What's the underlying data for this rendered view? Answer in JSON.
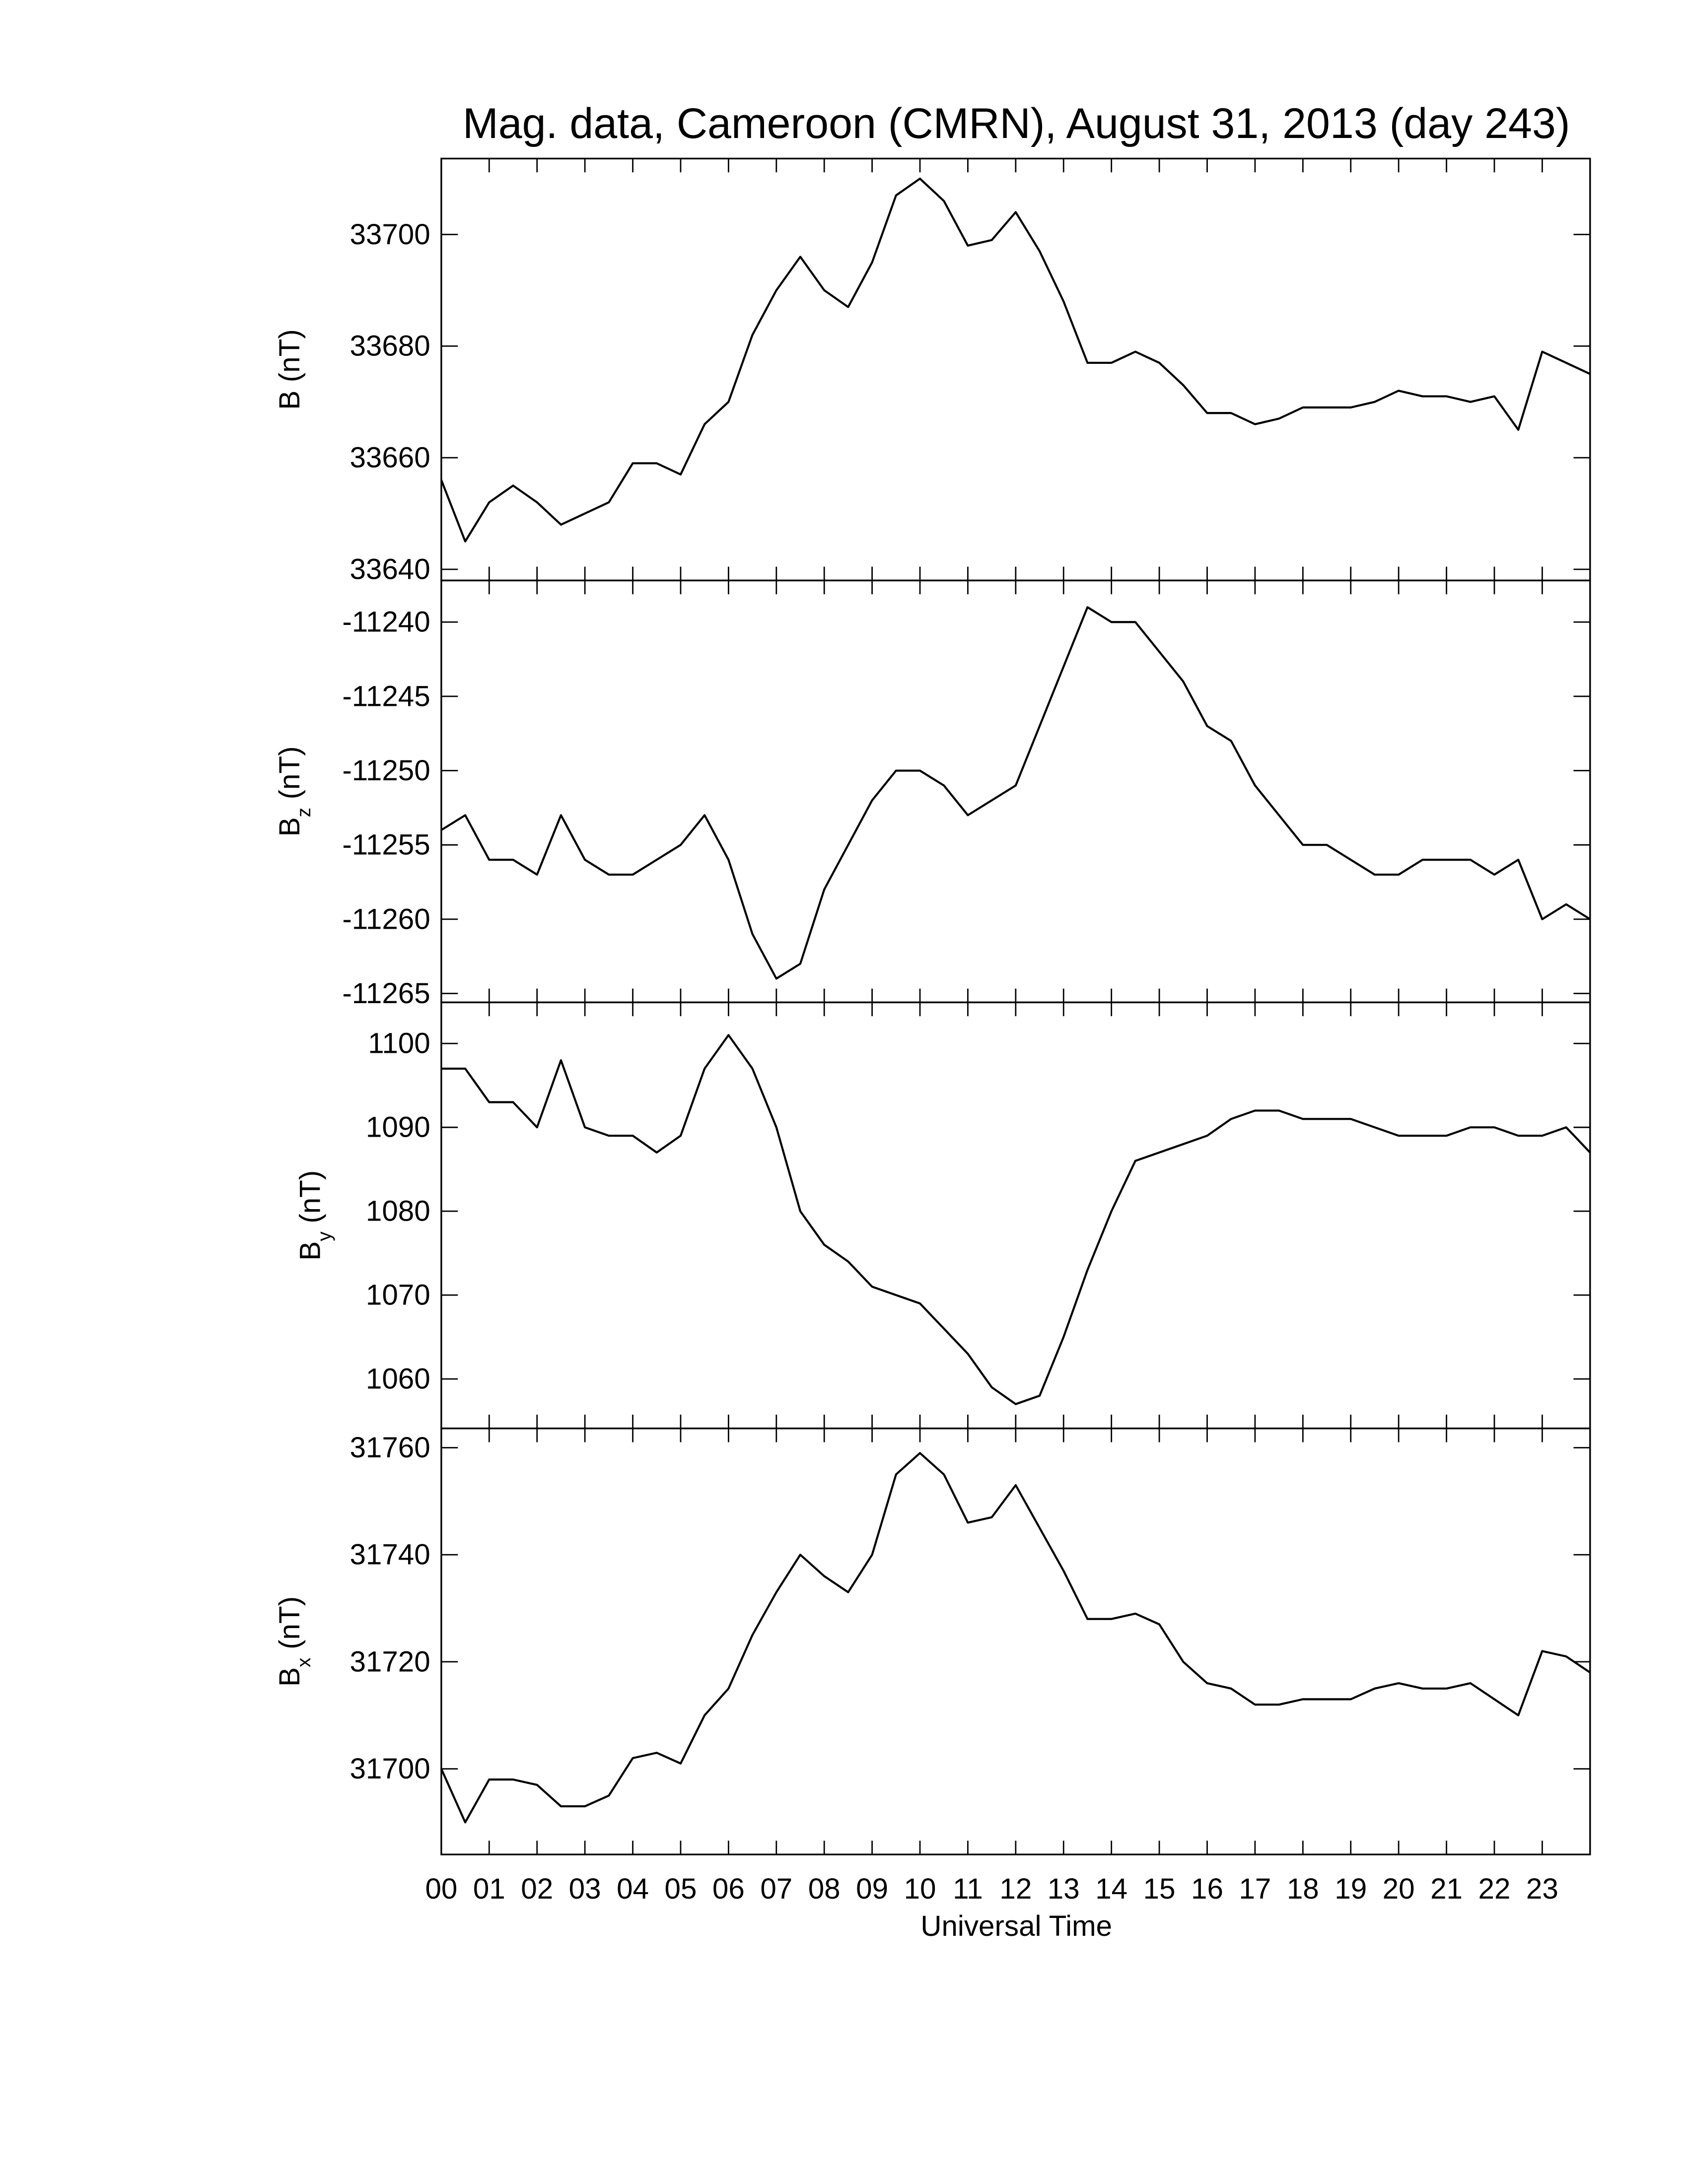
{
  "chart_data": [
    {
      "type": "line",
      "title": "Mag. data, Cameroon (CMRN), August 31, 2013 (day 243)",
      "ylabel": {
        "base": "B",
        "unit": "(nT)"
      },
      "x": [
        0,
        0.5,
        1,
        1.5,
        2,
        2.5,
        3,
        3.5,
        4,
        4.5,
        5,
        5.5,
        6,
        6.5,
        7,
        7.5,
        8,
        8.5,
        9,
        9.5,
        10,
        10.5,
        11,
        11.5,
        12,
        12.5,
        13,
        13.5,
        14,
        14.5,
        15,
        15.5,
        16,
        16.5,
        17,
        17.5,
        18,
        18.5,
        19,
        19.5,
        20,
        20.5,
        21,
        21.5,
        22,
        22.5,
        23,
        23.5,
        24
      ],
      "series": [
        {
          "color": "#000000",
          "values": [
            33656,
            33645,
            33652,
            33655,
            33652,
            33648,
            33650,
            33652,
            33659,
            33659,
            33657,
            33666,
            33670,
            33682,
            33690,
            33696,
            33690,
            33687,
            33695,
            33707,
            33710,
            33706,
            33698,
            33699,
            33704,
            33697,
            33688,
            33677,
            33677,
            33679,
            33677,
            33673,
            33668,
            33668,
            33666,
            33667,
            33669,
            33669,
            33669,
            33670,
            33672,
            33671,
            33671,
            33670,
            33671,
            33665,
            33679,
            33677,
            33675
          ]
        }
      ],
      "ylim": [
        33638,
        33713.6
      ],
      "yticks": [
        33640,
        33660,
        33680,
        33700
      ]
    },
    {
      "type": "line",
      "ylabel": {
        "base": "B",
        "sub": "z",
        "unit": "(nT)"
      },
      "x": [
        0,
        0.5,
        1,
        1.5,
        2,
        2.5,
        3,
        3.5,
        4,
        4.5,
        5,
        5.5,
        6,
        6.5,
        7,
        7.5,
        8,
        8.5,
        9,
        9.5,
        10,
        10.5,
        11,
        11.5,
        12,
        12.5,
        13,
        13.5,
        14,
        14.5,
        15,
        15.5,
        16,
        16.5,
        17,
        17.5,
        18,
        18.5,
        19,
        19.5,
        20,
        20.5,
        21,
        21.5,
        22,
        22.5,
        23,
        23.5,
        24
      ],
      "series": [
        {
          "color": "#000000",
          "values": [
            -11254,
            -11253,
            -11256,
            -11256,
            -11257,
            -11253,
            -11256,
            -11257,
            -11257,
            -11256,
            -11255,
            -11253,
            -11256,
            -11261,
            -11264,
            -11263,
            -11258,
            -11255,
            -11252,
            -11250,
            -11250,
            -11251,
            -11253,
            -11252,
            -11251,
            -11247,
            -11243,
            -11239,
            -11240,
            -11240,
            -11242,
            -11244,
            -11247,
            -11248,
            -11251,
            -11253,
            -11255,
            -11255,
            -11256,
            -11257,
            -11257,
            -11256,
            -11256,
            -11256,
            -11257,
            -11256,
            -11260,
            -11259,
            -11260
          ]
        }
      ],
      "ylim": [
        -11265.6,
        -11237.2
      ],
      "yticks": [
        -11265,
        -11260,
        -11255,
        -11250,
        -11245,
        -11240
      ]
    },
    {
      "type": "line",
      "ylabel": {
        "base": "B",
        "sub": "y",
        "unit": "(nT)"
      },
      "x": [
        0,
        0.5,
        1,
        1.5,
        2,
        2.5,
        3,
        3.5,
        4,
        4.5,
        5,
        5.5,
        6,
        6.5,
        7,
        7.5,
        8,
        8.5,
        9,
        9.5,
        10,
        10.5,
        11,
        11.5,
        12,
        12.5,
        13,
        13.5,
        14,
        14.5,
        15,
        15.5,
        16,
        16.5,
        17,
        17.5,
        18,
        18.5,
        19,
        19.5,
        20,
        20.5,
        21,
        21.5,
        22,
        22.5,
        23,
        23.5,
        24
      ],
      "series": [
        {
          "color": "#000000",
          "values": [
            1097,
            1097,
            1093,
            1093,
            1090,
            1098,
            1090,
            1089,
            1089,
            1087,
            1089,
            1097,
            1101,
            1097,
            1090,
            1080,
            1076,
            1074,
            1071,
            1070,
            1069,
            1066,
            1063,
            1059,
            1057,
            1058,
            1065,
            1073,
            1080,
            1086,
            1087,
            1088,
            1089,
            1091,
            1092,
            1092,
            1091,
            1091,
            1091,
            1090,
            1089,
            1089,
            1089,
            1090,
            1090,
            1089,
            1089,
            1090,
            1087
          ]
        }
      ],
      "ylim": [
        1054.1,
        1104.9
      ],
      "yticks": [
        1060,
        1070,
        1080,
        1090,
        1100
      ]
    },
    {
      "type": "line",
      "ylabel": {
        "base": "B",
        "sub": "x",
        "unit": "(nT)"
      },
      "xlabel": "Universal Time",
      "x": [
        0,
        0.5,
        1,
        1.5,
        2,
        2.5,
        3,
        3.5,
        4,
        4.5,
        5,
        5.5,
        6,
        6.5,
        7,
        7.5,
        8,
        8.5,
        9,
        9.5,
        10,
        10.5,
        11,
        11.5,
        12,
        12.5,
        13,
        13.5,
        14,
        14.5,
        15,
        15.5,
        16,
        16.5,
        17,
        17.5,
        18,
        18.5,
        19,
        19.5,
        20,
        20.5,
        21,
        21.5,
        22,
        22.5,
        23,
        23.5,
        24
      ],
      "series": [
        {
          "color": "#000000",
          "values": [
            31700,
            31690,
            31698,
            31698,
            31697,
            31693,
            31693,
            31695,
            31702,
            31703,
            31701,
            31710,
            31715,
            31725,
            31733,
            31740,
            31736,
            31733,
            31740,
            31755,
            31759,
            31755,
            31746,
            31747,
            31753,
            31745,
            31737,
            31728,
            31728,
            31729,
            31727,
            31720,
            31716,
            31715,
            31712,
            31712,
            31713,
            31713,
            31713,
            31715,
            31716,
            31715,
            31715,
            31716,
            31713,
            31710,
            31722,
            31721,
            31718
          ]
        }
      ],
      "ylim": [
        31684,
        31763.6
      ],
      "yticks": [
        31700,
        31720,
        31740,
        31760
      ],
      "xlim": [
        0,
        24
      ],
      "xticks": [
        {
          "value": 0,
          "label": "00"
        },
        {
          "value": 1,
          "label": "01"
        },
        {
          "value": 2,
          "label": "02"
        },
        {
          "value": 3,
          "label": "03"
        },
        {
          "value": 4,
          "label": "04"
        },
        {
          "value": 5,
          "label": "05"
        },
        {
          "value": 6,
          "label": "06"
        },
        {
          "value": 7,
          "label": "07"
        },
        {
          "value": 8,
          "label": "08"
        },
        {
          "value": 9,
          "label": "09"
        },
        {
          "value": 10,
          "label": "10"
        },
        {
          "value": 11,
          "label": "11"
        },
        {
          "value": 12,
          "label": "12"
        },
        {
          "value": 13,
          "label": "13"
        },
        {
          "value": 14,
          "label": "14"
        },
        {
          "value": 15,
          "label": "15"
        },
        {
          "value": 16,
          "label": "16"
        },
        {
          "value": 17,
          "label": "17"
        },
        {
          "value": 18,
          "label": "18"
        },
        {
          "value": 19,
          "label": "19"
        },
        {
          "value": 20,
          "label": "20"
        },
        {
          "value": 21,
          "label": "21"
        },
        {
          "value": 22,
          "label": "22"
        },
        {
          "value": 23,
          "label": "23"
        }
      ]
    }
  ]
}
